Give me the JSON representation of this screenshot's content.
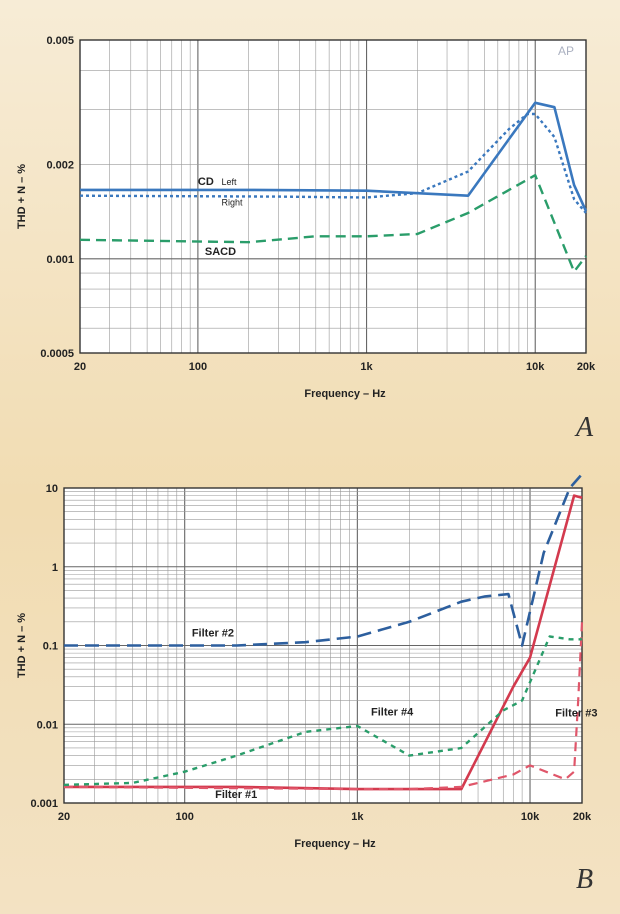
{
  "panels": [
    "A",
    "B"
  ],
  "watermark": "AP",
  "chart_data": [
    {
      "type": "line",
      "x_scale": "log",
      "y_scale": "log",
      "xlabel": "Frequency – Hz",
      "ylabel": "THD + N – %",
      "xlim": [
        20,
        20000
      ],
      "ylim": [
        0.0005,
        0.005
      ],
      "x_ticks": [
        {
          "v": 20,
          "label": "20"
        },
        {
          "v": 100,
          "label": "100"
        },
        {
          "v": 1000,
          "label": "1k"
        },
        {
          "v": 10000,
          "label": "10k"
        },
        {
          "v": 20000,
          "label": "20k"
        }
      ],
      "y_ticks": [
        {
          "v": 0.0005,
          "label": "0.0005"
        },
        {
          "v": 0.001,
          "label": "0.001"
        },
        {
          "v": 0.002,
          "label": "0.002"
        },
        {
          "v": 0.005,
          "label": "0.005"
        }
      ],
      "grid": true,
      "series": [
        {
          "name": "",
          "color": "#3a78be",
          "dash": "none",
          "width": 2.6,
          "x": [
            20,
            200,
            1000,
            2000,
            4000,
            10000,
            13000,
            17000,
            20000
          ],
          "y": [
            0.00166,
            0.00166,
            0.00165,
            0.00162,
            0.00159,
            0.00315,
            0.00305,
            0.00172,
            0.00142
          ]
        },
        {
          "name": "",
          "color": "#3a78be",
          "dash": "3,3",
          "width": 2.4,
          "x": [
            20,
            300,
            1000,
            2000,
            4000,
            7000,
            9000,
            10000,
            13000,
            17000,
            20000
          ],
          "y": [
            0.00159,
            0.00158,
            0.00157,
            0.00162,
            0.0019,
            0.0026,
            0.0029,
            0.0029,
            0.00245,
            0.00155,
            0.0014
          ]
        },
        {
          "name": "",
          "color": "#2a9d6a",
          "dash": "10,6",
          "width": 2.4,
          "x": [
            20,
            200,
            500,
            1000,
            2000,
            4000,
            10000,
            17000,
            20000
          ],
          "y": [
            0.00115,
            0.00113,
            0.00118,
            0.00118,
            0.0012,
            0.0014,
            0.00185,
            0.00091,
            0.00102
          ]
        }
      ],
      "annotations": [
        {
          "text": "CD",
          "x": 100,
          "y": 0.00172,
          "size": 11
        },
        {
          "text": "Left",
          "x": 138,
          "y": 0.00172,
          "size": 9
        },
        {
          "text": "Right",
          "x": 138,
          "y": 0.00148,
          "size": 9
        },
        {
          "text": "SACD",
          "x": 110,
          "y": 0.00103,
          "size": 11
        }
      ]
    },
    {
      "type": "line",
      "x_scale": "log",
      "y_scale": "log",
      "xlabel": "Frequency – Hz",
      "ylabel": "THD + N – %",
      "xlim": [
        20,
        20000
      ],
      "ylim": [
        0.001,
        10
      ],
      "x_ticks": [
        {
          "v": 20,
          "label": "20"
        },
        {
          "v": 100,
          "label": "100"
        },
        {
          "v": 1000,
          "label": "1k"
        },
        {
          "v": 10000,
          "label": "10k"
        },
        {
          "v": 20000,
          "label": "20k"
        }
      ],
      "y_ticks": [
        {
          "v": 0.001,
          "label": "0.001"
        },
        {
          "v": 0.01,
          "label": "0.01"
        },
        {
          "v": 0.1,
          "label": "0.1"
        },
        {
          "v": 1,
          "label": "1"
        },
        {
          "v": 10,
          "label": "10"
        }
      ],
      "grid": true,
      "series": [
        {
          "name": "",
          "color": "#d33a4e",
          "dash": "none",
          "width": 2.6,
          "x": [
            20,
            200,
            1000,
            2000,
            4000,
            8000,
            10000,
            18000,
            20000
          ],
          "y": [
            0.0016,
            0.0016,
            0.0015,
            0.0015,
            0.0015,
            0.03,
            0.07,
            8,
            7.5
          ]
        },
        {
          "name": "",
          "color": "#2d5f9e",
          "dash": "14,7",
          "width": 2.6,
          "x": [
            20,
            200,
            500,
            1000,
            2000,
            4000,
            5500,
            7500,
            9000,
            12000,
            17000,
            20000
          ],
          "y": [
            0.1,
            0.1,
            0.11,
            0.13,
            0.2,
            0.36,
            0.42,
            0.45,
            0.1,
            1.5,
            10,
            15
          ]
        },
        {
          "name": "",
          "color": "#e0566a",
          "dash": "9,6",
          "width": 2.2,
          "x": [
            20,
            1000,
            2000,
            4000,
            8000,
            10000,
            16000,
            18000,
            19000,
            20000
          ],
          "y": [
            0.0016,
            0.0015,
            0.0015,
            0.0016,
            0.0023,
            0.003,
            0.002,
            0.0025,
            0.02,
            0.2
          ]
        },
        {
          "name": "",
          "color": "#2a9d6a",
          "dash": "5,5",
          "width": 2.4,
          "x": [
            20,
            50,
            100,
            200,
            500,
            1000,
            2000,
            4000,
            7000,
            9000,
            13000,
            17000,
            20000
          ],
          "y": [
            0.0017,
            0.0018,
            0.0025,
            0.004,
            0.008,
            0.0095,
            0.004,
            0.005,
            0.015,
            0.02,
            0.13,
            0.12,
            0.12
          ]
        }
      ],
      "annotations": [
        {
          "text": "Filter #2",
          "x": 110,
          "y": 0.13,
          "size": 11
        },
        {
          "text": "Filter #4",
          "x": 1200,
          "y": 0.013,
          "size": 11
        },
        {
          "text": "Filter #3",
          "x": 14000,
          "y": 0.0125,
          "size": 11
        },
        {
          "text": "Filter #1",
          "x": 150,
          "y": 0.00115,
          "size": 11
        }
      ]
    }
  ]
}
